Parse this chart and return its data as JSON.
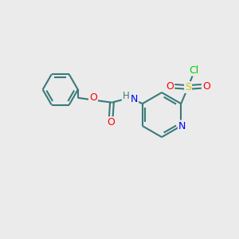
{
  "bg_color": "#ebebeb",
  "atom_colors": {
    "C": "#3a7a7a",
    "N": "#0000ff",
    "O": "#ff0000",
    "S": "#cccc00",
    "Cl": "#00cc00",
    "H": "#3a7a7a"
  },
  "bond_color": "#3a7a7a",
  "bond_width": 1.5,
  "font_size": 8.5
}
